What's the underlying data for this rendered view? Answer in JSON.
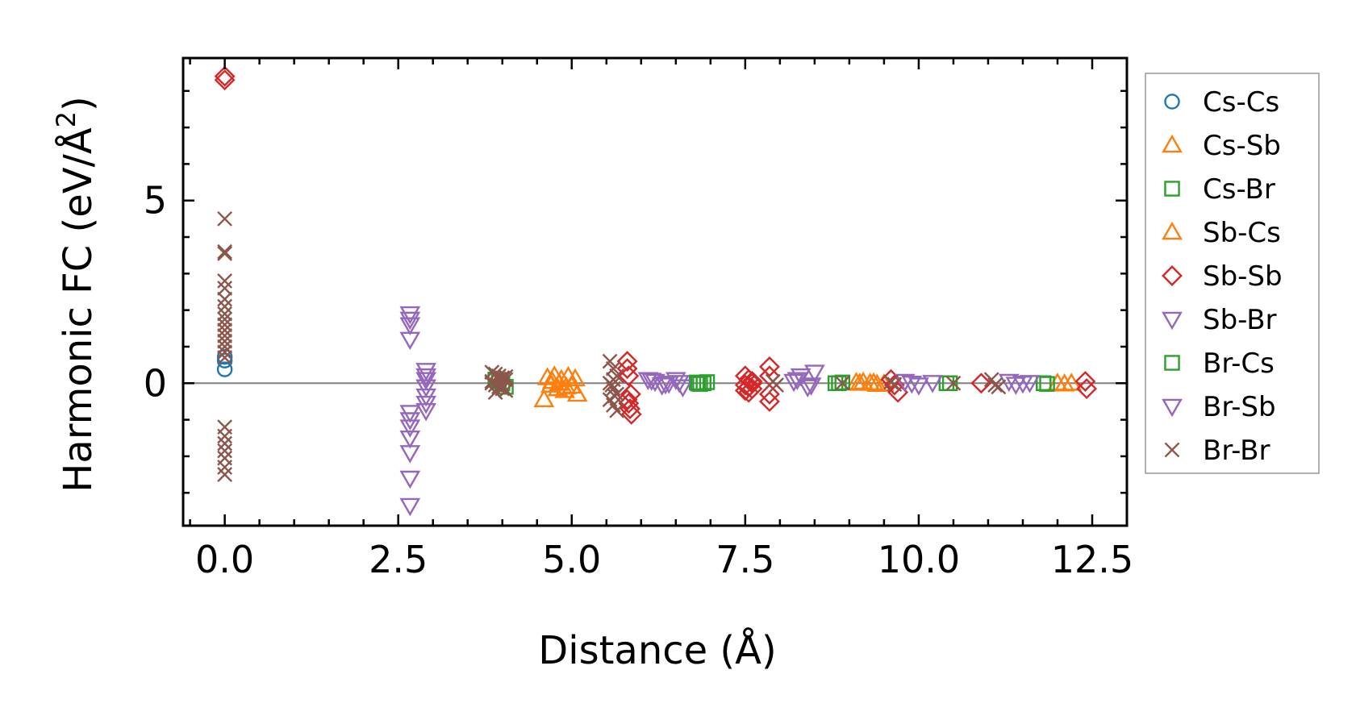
{
  "chart_data": {
    "type": "scatter",
    "xlabel": "Distance (Å)",
    "ylabel_main": "Harmonic FC (eV/Å",
    "ylabel_sup": "2",
    "ylabel_end": ")",
    "xlim": [
      -0.6,
      13.0
    ],
    "ylim": [
      -3.9,
      8.9
    ],
    "x_ticks": [
      0.0,
      2.5,
      5.0,
      7.5,
      10.0,
      12.5
    ],
    "x_tick_labels": [
      "0.0",
      "2.5",
      "5.0",
      "7.5",
      "10.0",
      "12.5"
    ],
    "y_ticks": [
      0,
      5
    ],
    "y_tick_labels": [
      "0",
      "5"
    ],
    "zero_line": true,
    "legend_position": "right",
    "series": [
      {
        "name": "Cs-Cs",
        "marker": "circle",
        "color": "#1f77b4",
        "x": [
          0,
          0,
          0
        ],
        "y": [
          0.38,
          0.62,
          0.72
        ]
      },
      {
        "name": "Cs-Sb",
        "marker": "triangle-up",
        "color": "#ff7f0e",
        "x": [
          4.65,
          4.75,
          4.85,
          4.95,
          5.05,
          4.7,
          4.8,
          4.9,
          5.0,
          4.6,
          5.08,
          9.1,
          9.3,
          9.5,
          9.2,
          9.4,
          12.0,
          12.2
        ],
        "y": [
          0.15,
          0.2,
          0.1,
          0.18,
          0.12,
          -0.05,
          -0.15,
          -0.2,
          -0.08,
          -0.45,
          -0.3,
          0.02,
          0.0,
          -0.02,
          0.03,
          -0.03,
          0.0,
          0.0
        ]
      },
      {
        "name": "Cs-Br",
        "marker": "square",
        "color": "#2ca02c",
        "x": [
          3.9,
          4.0,
          4.05,
          6.8,
          6.85,
          6.9,
          6.95,
          8.8,
          8.9,
          10.4,
          11.8,
          11.85
        ],
        "y": [
          0.1,
          0.0,
          -0.1,
          0.02,
          -0.02,
          0.0,
          0.03,
          0.0,
          0.02,
          0.0,
          0.0,
          -0.02
        ]
      },
      {
        "name": "Sb-Cs",
        "marker": "triangle-up",
        "color": "#ff7f0e",
        "x": [
          4.72,
          4.82,
          4.92,
          9.15,
          9.35,
          12.1
        ],
        "y": [
          0.05,
          0.0,
          -0.1,
          0.0,
          0.01,
          -0.02
        ]
      },
      {
        "name": "Sb-Sb",
        "marker": "diamond",
        "color": "#d62728",
        "x": [
          0,
          0,
          5.8,
          5.8,
          5.82,
          5.85,
          5.8,
          5.82,
          5.84,
          5.86,
          7.5,
          7.55,
          7.6,
          7.5,
          7.55,
          7.6,
          7.5,
          7.55,
          7.6,
          7.85,
          7.85,
          7.85,
          7.85,
          9.6,
          9.65,
          9.7,
          10.9,
          12.4,
          12.42
        ],
        "y": [
          8.4,
          8.3,
          0.6,
          0.4,
          0.2,
          -0.3,
          -0.45,
          -0.55,
          -0.7,
          -0.85,
          0.2,
          0.1,
          0.0,
          -0.05,
          -0.1,
          -0.15,
          -0.2,
          -0.25,
          0.05,
          0.45,
          0.2,
          -0.3,
          -0.5,
          0.1,
          -0.05,
          -0.25,
          0.0,
          0.05,
          -0.15
        ]
      },
      {
        "name": "Sb-Br",
        "marker": "triangle-down",
        "color": "#9467bd",
        "x": [
          2.67,
          2.67,
          2.67,
          2.67,
          2.67,
          2.67,
          2.67,
          2.67,
          2.67,
          2.67,
          2.67,
          2.9,
          2.9,
          2.9,
          2.9,
          2.9,
          2.9,
          6.1,
          6.2,
          6.3,
          6.4,
          6.5,
          6.6,
          8.2,
          8.3,
          8.4,
          8.5
        ],
        "y": [
          1.9,
          1.75,
          1.6,
          1.2,
          -0.8,
          -1.0,
          -1.2,
          -1.5,
          -1.9,
          -2.6,
          -3.35,
          0.35,
          0.1,
          -0.1,
          -0.35,
          -0.55,
          -0.75,
          0.1,
          0.05,
          -0.05,
          0.0,
          0.1,
          -0.1,
          0.05,
          0.2,
          -0.1,
          0.3
        ]
      },
      {
        "name": "Br-Cs",
        "marker": "square",
        "color": "#2ca02c",
        "x": [
          3.95,
          6.82,
          8.85,
          10.45,
          11.8
        ],
        "y": [
          0.05,
          -0.01,
          0.0,
          0.0,
          0.0
        ]
      },
      {
        "name": "Br-Sb",
        "marker": "triangle-down",
        "color": "#9467bd",
        "x": [
          2.9,
          6.15,
          6.35,
          6.55,
          8.25,
          8.45,
          9.8,
          9.9,
          10.0,
          10.2,
          11.3,
          11.4,
          11.5,
          11.6
        ],
        "y": [
          0.2,
          0.08,
          -0.02,
          0.02,
          0.1,
          -0.05,
          0.05,
          0.0,
          -0.05,
          0.02,
          0.05,
          -0.03,
          0.0,
          0.02
        ]
      },
      {
        "name": "Br-Br",
        "marker": "x",
        "color": "#8c564b",
        "x": [
          0,
          0,
          0,
          0,
          0,
          0,
          0,
          0,
          0,
          0,
          0,
          0,
          0,
          0,
          0,
          0,
          0,
          0,
          0,
          0,
          0,
          0,
          0,
          3.85,
          3.9,
          3.95,
          4.0,
          4.05,
          3.85,
          3.9,
          3.95,
          4.0,
          4.05,
          3.85,
          3.9,
          3.95,
          4.0,
          4.05,
          5.55,
          5.6,
          5.65,
          5.55,
          5.6,
          5.65,
          5.55,
          5.6,
          5.65,
          5.6,
          5.58,
          5.62,
          7.9,
          7.95,
          8.9,
          9.6,
          9.65,
          10.5,
          11.05,
          11.1,
          11.15
        ],
        "y": [
          4.5,
          3.6,
          3.55,
          2.8,
          2.6,
          2.3,
          2.1,
          1.9,
          1.75,
          1.6,
          1.45,
          1.3,
          1.15,
          1.0,
          0.85,
          0.7,
          -1.2,
          -1.45,
          -1.65,
          -1.85,
          -2.05,
          -2.3,
          -2.5,
          0.3,
          0.25,
          0.2,
          0.15,
          0.1,
          0.0,
          -0.05,
          -0.1,
          -0.15,
          -0.2,
          0.05,
          -0.25,
          0.12,
          -0.08,
          0.18,
          0.6,
          0.4,
          0.2,
          0.0,
          -0.15,
          -0.3,
          -0.45,
          -0.6,
          -0.75,
          0.1,
          -0.05,
          -0.35,
          0.05,
          -0.05,
          0.0,
          0.03,
          -0.03,
          0.0,
          0.1,
          -0.05,
          -0.1
        ]
      }
    ]
  }
}
